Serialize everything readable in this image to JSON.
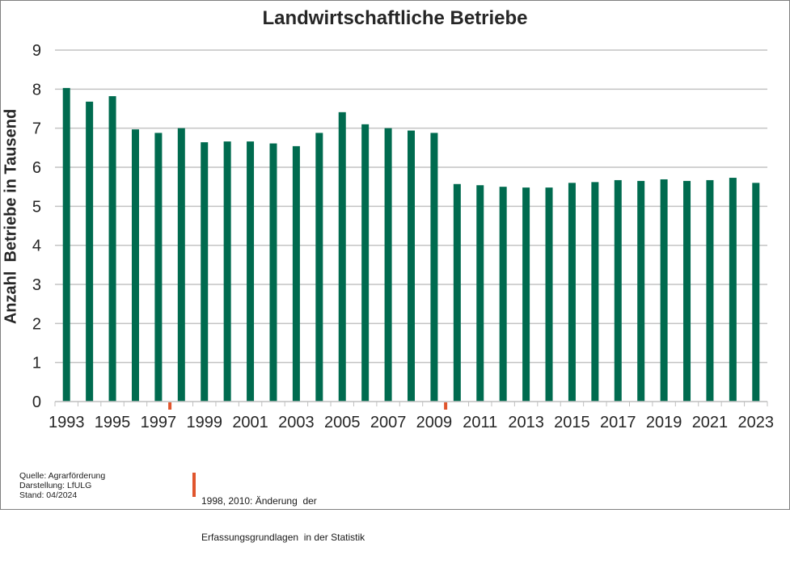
{
  "chart_data": {
    "type": "bar",
    "title": "Landwirtschaftliche Betriebe",
    "ylabel": "Anzahl  Betriebe in Tausend",
    "xlabel": "",
    "ylim": [
      0,
      9
    ],
    "yticks": [
      "0",
      "1",
      "2",
      "3",
      "4",
      "5",
      "6",
      "7",
      "8",
      "9"
    ],
    "grid": true,
    "bar_color": "#006b4f",
    "marker_color": "#e0552d",
    "categories": [
      "1993",
      "1994",
      "1995",
      "1996",
      "1997",
      "1998",
      "1999",
      "2000",
      "2001",
      "2002",
      "2003",
      "2004",
      "2005",
      "2006",
      "2007",
      "2008",
      "2009",
      "2010",
      "2011",
      "2012",
      "2013",
      "2014",
      "2015",
      "2016",
      "2017",
      "2018",
      "2019",
      "2020",
      "2021",
      "2022",
      "2023"
    ],
    "tick_labels": [
      "1993",
      "1995",
      "1997",
      "1999",
      "2001",
      "2003",
      "2005",
      "2007",
      "2009",
      "2011",
      "2013",
      "2015",
      "2017",
      "2019",
      "2021",
      "2023"
    ],
    "values": [
      8.03,
      7.68,
      7.82,
      6.97,
      6.88,
      7.0,
      6.64,
      6.66,
      6.66,
      6.61,
      6.54,
      6.88,
      7.41,
      7.1,
      7.0,
      6.94,
      6.88,
      5.57,
      5.54,
      5.5,
      5.48,
      5.48,
      5.6,
      5.62,
      5.67,
      5.65,
      5.69,
      5.65,
      5.67,
      5.73,
      5.6
    ],
    "markers_after_years": [
      "1997",
      "2009"
    ]
  },
  "footer": {
    "source_lines": [
      "Quelle: Agrarförderung",
      "Darstellung: LfULG",
      "Stand: 04/2024"
    ],
    "note_lines": [
      "1998, 2010: Änderung  der",
      "Erfassungsgrundlagen  in der Statistik"
    ]
  }
}
